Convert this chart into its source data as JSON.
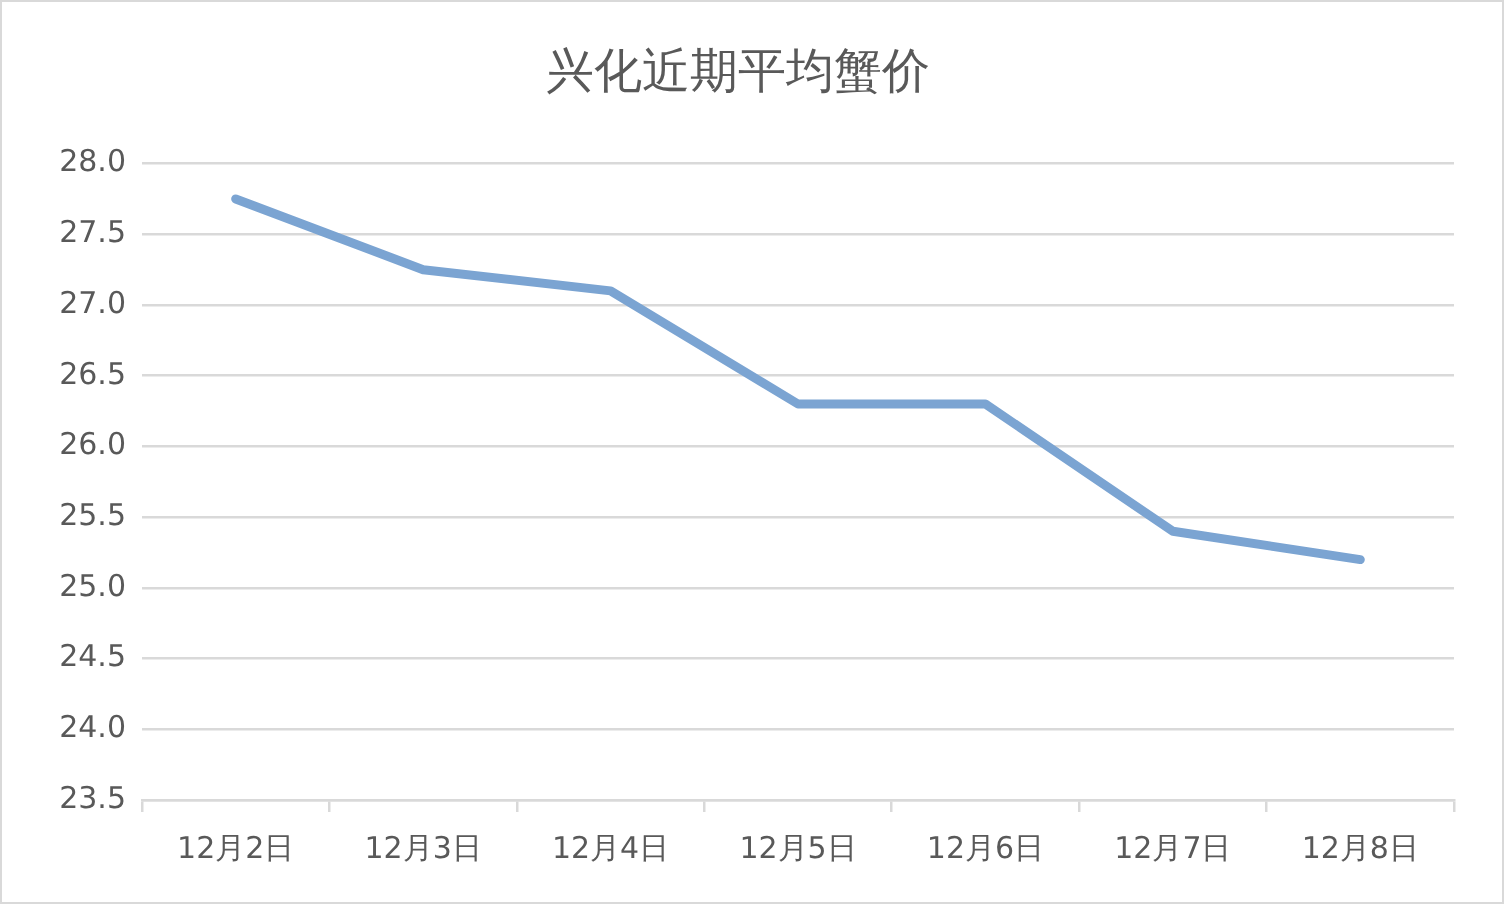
{
  "chart_data": {
    "type": "line",
    "title": "兴化近期平均蟹价",
    "categories": [
      "12月2日",
      "12月3日",
      "12月4日",
      "12月5日",
      "12月6日",
      "12月7日",
      "12月8日"
    ],
    "values": [
      27.75,
      27.25,
      27.1,
      26.3,
      26.3,
      25.4,
      25.2
    ],
    "color": "#7ba4d2",
    "ylim": [
      23.5,
      28
    ],
    "yticks": [
      {
        "value": 23.5,
        "label": "23.5"
      },
      {
        "value": 24,
        "label": "24.0"
      },
      {
        "value": 24.5,
        "label": "24.5"
      },
      {
        "value": 25,
        "label": "25.0"
      },
      {
        "value": 25.5,
        "label": "25.5"
      },
      {
        "value": 26,
        "label": "26.0"
      },
      {
        "value": 26.5,
        "label": "26.5"
      },
      {
        "value": 27,
        "label": "27.0"
      },
      {
        "value": 27.5,
        "label": "27.5"
      },
      {
        "value": 28,
        "label": "28.0"
      }
    ],
    "grid": "y",
    "marker": "none",
    "line_style": "solid"
  }
}
